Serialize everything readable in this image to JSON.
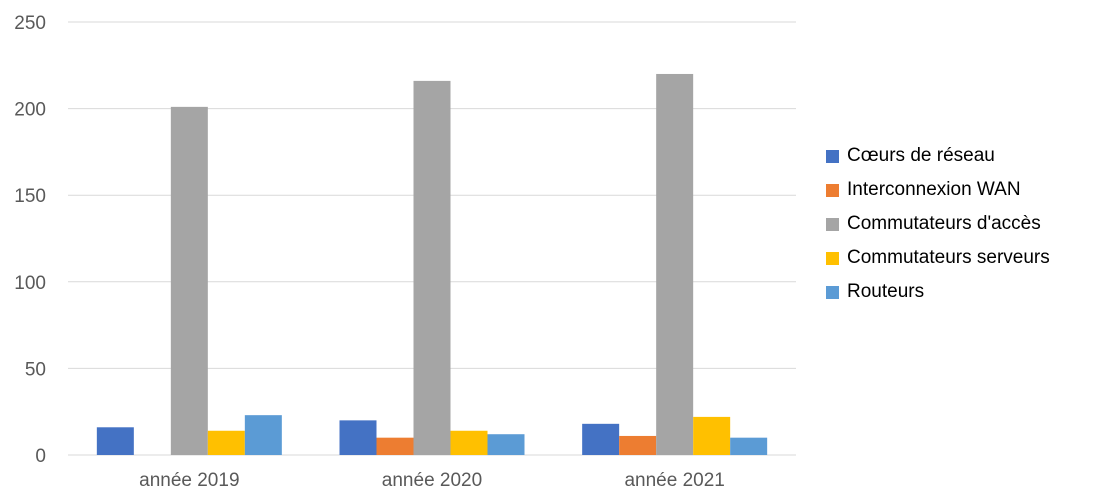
{
  "chart_data": {
    "type": "bar",
    "title": "",
    "xlabel": "",
    "ylabel": "",
    "ylim": [
      0,
      250
    ],
    "yticks": [
      0,
      50,
      100,
      150,
      200,
      250
    ],
    "grid": true,
    "legend_position": "right",
    "categories": [
      "année 2019",
      "année 2020",
      "année 2021"
    ],
    "series": [
      {
        "name": "Cœurs de réseau",
        "color": "#4472C4",
        "values": [
          16,
          20,
          18
        ]
      },
      {
        "name": "Interconnexion WAN",
        "color": "#ED7D31",
        "values": [
          0,
          10,
          11
        ]
      },
      {
        "name": "Commutateurs d'accès",
        "color": "#A5A5A5",
        "values": [
          201,
          216,
          220
        ]
      },
      {
        "name": "Commutateurs serveurs",
        "color": "#FFC000",
        "values": [
          14,
          14,
          22
        ]
      },
      {
        "name": "Routeurs",
        "color": "#5B9BD5",
        "values": [
          23,
          12,
          10
        ]
      }
    ]
  }
}
